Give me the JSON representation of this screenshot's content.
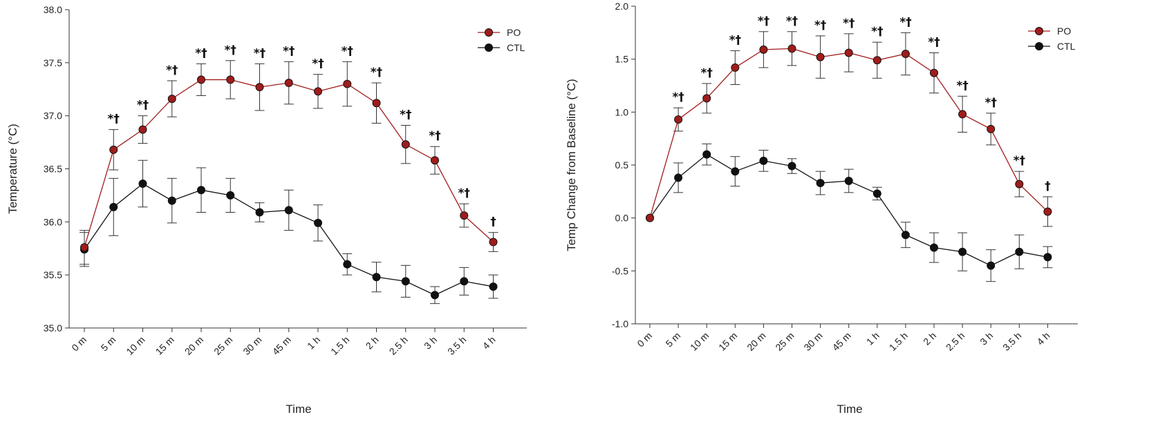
{
  "chart_data": [
    {
      "type": "line",
      "xlabel": "Time",
      "ylabel": "Temperature (°C)",
      "ylim": [
        35.0,
        38.0
      ],
      "yticks": [
        "35.0",
        "35.5",
        "36.0",
        "36.5",
        "37.0",
        "37.5",
        "38.0"
      ],
      "categories": [
        "0 m",
        "5 m",
        "10 m",
        "15 m",
        "20 m",
        "25 m",
        "30 m",
        "45 m",
        "1 h",
        "1.5 h",
        "2 h",
        "2.5 h",
        "3 h",
        "3.5 h",
        "4 h"
      ],
      "legend_position": "top-right",
      "series": [
        {
          "name": "PO",
          "color": "#a01c1c",
          "values": [
            35.76,
            36.68,
            36.87,
            37.16,
            37.34,
            37.34,
            37.27,
            37.31,
            37.23,
            37.3,
            37.12,
            36.73,
            36.58,
            36.06,
            35.81
          ],
          "errors": [
            0.16,
            0.19,
            0.13,
            0.17,
            0.15,
            0.18,
            0.22,
            0.2,
            0.16,
            0.21,
            0.19,
            0.18,
            0.13,
            0.11,
            0.09
          ]
        },
        {
          "name": "CTL",
          "color": "#111111",
          "values": [
            35.74,
            36.14,
            36.36,
            36.2,
            36.3,
            36.25,
            36.09,
            36.11,
            35.99,
            35.6,
            35.48,
            35.44,
            35.31,
            35.44,
            35.39
          ],
          "errors": [
            0.16,
            0.27,
            0.22,
            0.21,
            0.21,
            0.16,
            0.09,
            0.19,
            0.17,
            0.1,
            0.14,
            0.15,
            0.08,
            0.13,
            0.11
          ]
        }
      ],
      "annotations": [
        "",
        "*†",
        "*†",
        "*†",
        "*†",
        "*†",
        "*†",
        "*†",
        "*†",
        "*†",
        "*†",
        "*†",
        "*†",
        "*†",
        "†"
      ]
    },
    {
      "type": "line",
      "xlabel": "Time",
      "ylabel": "Temp Change from Baseline (°C)",
      "ylim": [
        -1.0,
        2.0
      ],
      "yticks": [
        "-1.0",
        "-0.5",
        "0.0",
        "0.5",
        "1.0",
        "1.5",
        "2.0"
      ],
      "categories": [
        "0 m",
        "5 m",
        "10 m",
        "15 m",
        "20 m",
        "25 m",
        "30 m",
        "45 m",
        "1 h",
        "1.5 h",
        "2 h",
        "2.5 h",
        "3 h",
        "3.5 h",
        "4 h"
      ],
      "legend_position": "top-right",
      "series": [
        {
          "name": "PO",
          "color": "#a01c1c",
          "values": [
            0.0,
            0.93,
            1.13,
            1.42,
            1.59,
            1.6,
            1.52,
            1.56,
            1.49,
            1.55,
            1.37,
            0.98,
            0.84,
            0.32,
            0.06
          ],
          "errors": [
            0.0,
            0.11,
            0.14,
            0.16,
            0.17,
            0.16,
            0.2,
            0.18,
            0.17,
            0.2,
            0.19,
            0.17,
            0.15,
            0.12,
            0.14
          ]
        },
        {
          "name": "CTL",
          "color": "#111111",
          "values": [
            0.0,
            0.38,
            0.6,
            0.44,
            0.54,
            0.49,
            0.33,
            0.35,
            0.23,
            -0.16,
            -0.28,
            -0.32,
            -0.45,
            -0.32,
            -0.37
          ],
          "errors": [
            0.0,
            0.14,
            0.1,
            0.14,
            0.1,
            0.07,
            0.11,
            0.11,
            0.06,
            0.12,
            0.14,
            0.18,
            0.15,
            0.16,
            0.1
          ]
        }
      ],
      "annotations": [
        "",
        "*†",
        "*†",
        "*†",
        "*†",
        "*†",
        "*†",
        "*†",
        "*†",
        "*†",
        "*†",
        "*†",
        "*†",
        "*†",
        "†"
      ]
    }
  ]
}
